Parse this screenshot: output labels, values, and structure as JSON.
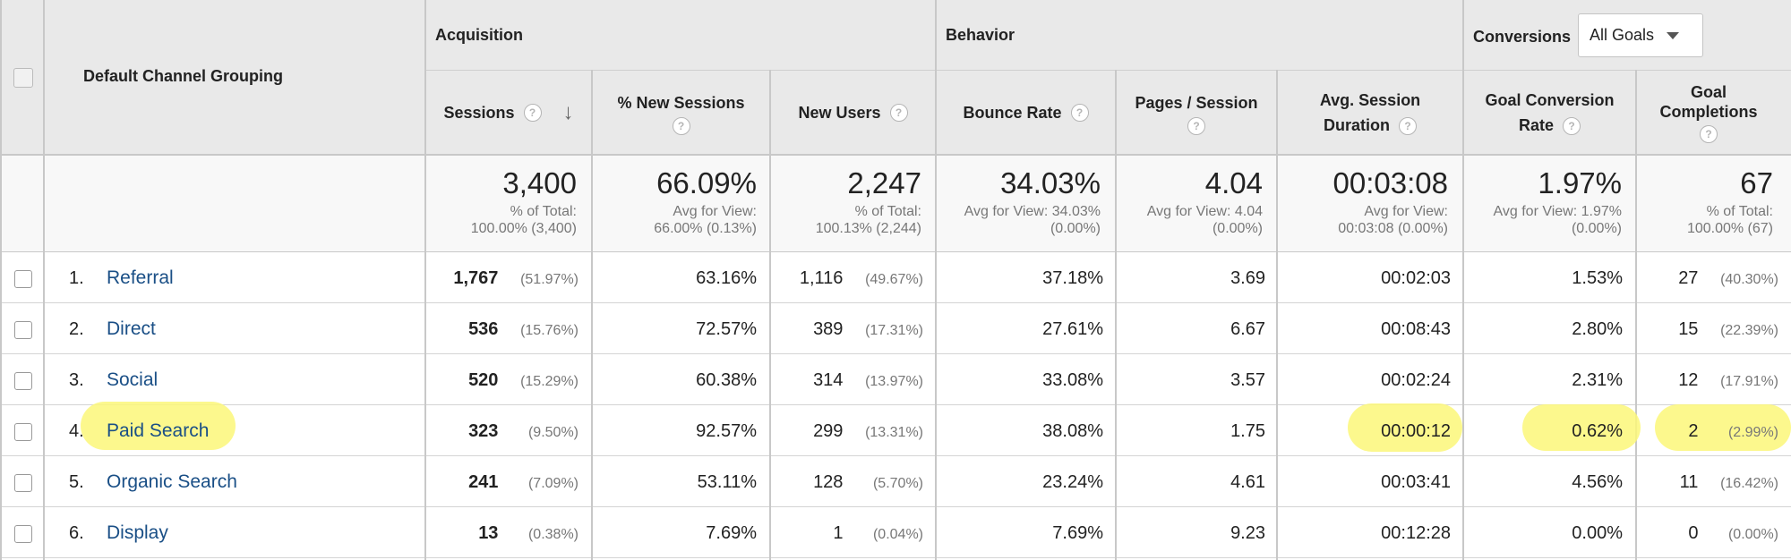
{
  "header": {
    "select_all_checkbox": "",
    "dimension_label": "Default Channel Grouping",
    "groups": {
      "acquisition": "Acquisition",
      "behavior": "Behavior",
      "conversions": "Conversions"
    },
    "goal_select": "All Goals",
    "columns": {
      "sessions": "Sessions",
      "new_sessions": "% New Sessions",
      "new_users": "New Users",
      "bounce_rate": "Bounce Rate",
      "pages_session": "Pages / Session",
      "avg_duration_1": "Avg. Session",
      "avg_duration_2": "Duration",
      "goal_conv_1": "Goal Conversion",
      "goal_conv_2": "Rate",
      "goal_comp_1": "Goal",
      "goal_comp_2": "Completions"
    },
    "help_icon": "?",
    "sort_icon": "↓"
  },
  "totals": {
    "sessions": {
      "value": "3,400",
      "l1": "% of Total:",
      "l2": "100.00% (3,400)"
    },
    "new_sessions": {
      "value": "66.09%",
      "l1": "Avg for View:",
      "l2": "66.00% (0.13%)"
    },
    "new_users": {
      "value": "2,247",
      "l1": "% of Total:",
      "l2": "100.13% (2,244)"
    },
    "bounce_rate": {
      "value": "34.03%",
      "l1": "Avg for View: 34.03%",
      "l2": "(0.00%)"
    },
    "pages_session": {
      "value": "4.04",
      "l1": "Avg for View: 4.04",
      "l2": "(0.00%)"
    },
    "avg_duration": {
      "value": "00:03:08",
      "l1": "Avg for View:",
      "l2": "00:03:08 (0.00%)"
    },
    "goal_conv": {
      "value": "1.97%",
      "l1": "Avg for View: 1.97%",
      "l2": "(0.00%)"
    },
    "goal_comp": {
      "value": "67",
      "l1": "% of Total:",
      "l2": "100.00% (67)"
    }
  },
  "rows": [
    {
      "num": "1.",
      "channel": "Referral",
      "sessions": "1,767",
      "sessions_pct": "(51.97%)",
      "new_sessions": "63.16%",
      "new_users": "1,116",
      "new_users_pct": "(49.67%)",
      "bounce_rate": "37.18%",
      "pages_session": "3.69",
      "avg_duration": "00:02:03",
      "goal_conv": "1.53%",
      "goal_comp": "27",
      "goal_comp_pct": "(40.30%)"
    },
    {
      "num": "2.",
      "channel": "Direct",
      "sessions": "536",
      "sessions_pct": "(15.76%)",
      "new_sessions": "72.57%",
      "new_users": "389",
      "new_users_pct": "(17.31%)",
      "bounce_rate": "27.61%",
      "pages_session": "6.67",
      "avg_duration": "00:08:43",
      "goal_conv": "2.80%",
      "goal_comp": "15",
      "goal_comp_pct": "(22.39%)"
    },
    {
      "num": "3.",
      "channel": "Social",
      "sessions": "520",
      "sessions_pct": "(15.29%)",
      "new_sessions": "60.38%",
      "new_users": "314",
      "new_users_pct": "(13.97%)",
      "bounce_rate": "33.08%",
      "pages_session": "3.57",
      "avg_duration": "00:02:24",
      "goal_conv": "2.31%",
      "goal_comp": "12",
      "goal_comp_pct": "(17.91%)"
    },
    {
      "num": "4.",
      "channel": "Paid Search",
      "sessions": "323",
      "sessions_pct": "(9.50%)",
      "new_sessions": "92.57%",
      "new_users": "299",
      "new_users_pct": "(13.31%)",
      "bounce_rate": "38.08%",
      "pages_session": "1.75",
      "avg_duration": "00:00:12",
      "goal_conv": "0.62%",
      "goal_comp": "2",
      "goal_comp_pct": "(2.99%)"
    },
    {
      "num": "5.",
      "channel": "Organic Search",
      "sessions": "241",
      "sessions_pct": "(7.09%)",
      "new_sessions": "53.11%",
      "new_users": "128",
      "new_users_pct": "(5.70%)",
      "bounce_rate": "23.24%",
      "pages_session": "4.61",
      "avg_duration": "00:03:41",
      "goal_conv": "4.56%",
      "goal_comp": "11",
      "goal_comp_pct": "(16.42%)"
    },
    {
      "num": "6.",
      "channel": "Display",
      "sessions": "13",
      "sessions_pct": "(0.38%)",
      "new_sessions": "7.69%",
      "new_users": "1",
      "new_users_pct": "(0.04%)",
      "bounce_rate": "7.69%",
      "pages_session": "9.23",
      "avg_duration": "00:12:28",
      "goal_conv": "0.00%",
      "goal_comp": "0",
      "goal_comp_pct": "(0.00%)"
    }
  ],
  "colors": {
    "link": "#1a4f86",
    "highlight": "#fbf779",
    "header_bg": "#e9e9e9",
    "totals_bg": "#f8f8f8"
  }
}
